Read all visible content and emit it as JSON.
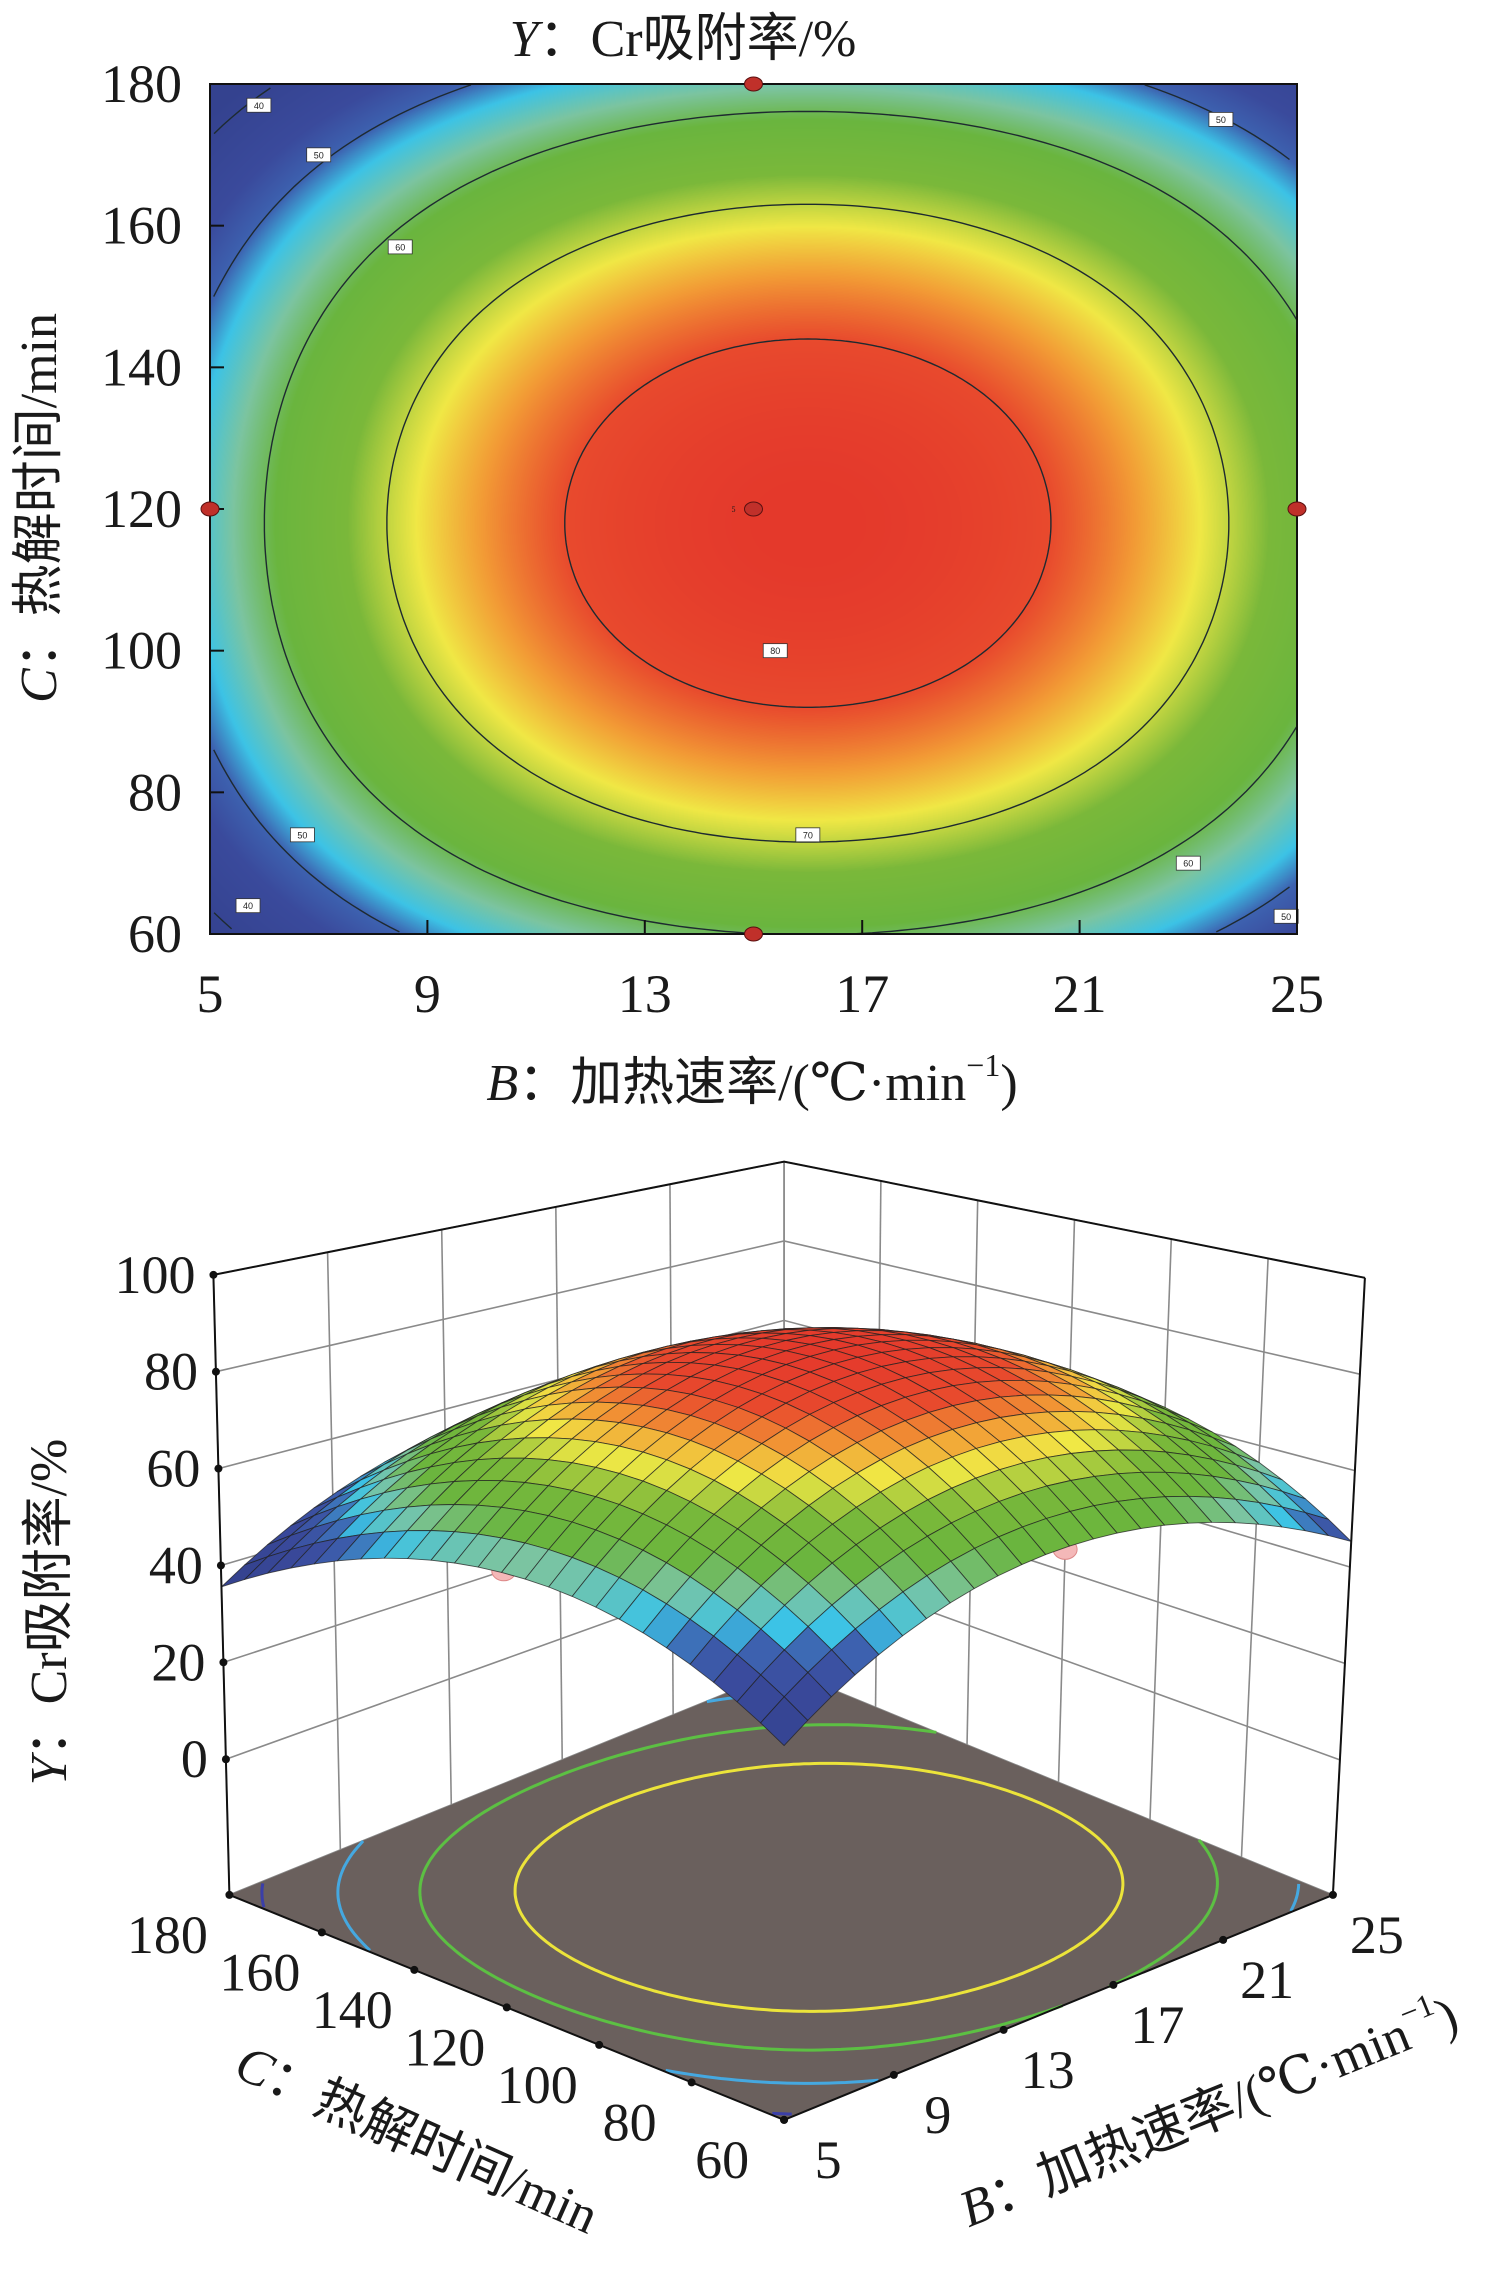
{
  "chart_data": [
    {
      "type": "contour",
      "title": {
        "var": "Y",
        "text": "：Cr吸附率/%"
      },
      "xlabel": {
        "var": "B",
        "text": "：加热速率/(℃·min",
        "sup": "−1",
        "close": ")"
      },
      "ylabel": {
        "var": "C",
        "text": "：热解时间/min"
      },
      "xlim": [
        5,
        25
      ],
      "ylim": [
        60,
        180
      ],
      "xticks": [
        "5",
        "9",
        "13",
        "17",
        "21",
        "25"
      ],
      "yticks": [
        "60",
        "80",
        "100",
        "120",
        "140",
        "160",
        "180"
      ],
      "contour_levels": [
        40,
        50,
        60,
        70,
        80
      ],
      "design_points": [
        {
          "B": 15,
          "C": 180
        },
        {
          "B": 5,
          "C": 120
        },
        {
          "B": 25,
          "C": 120
        },
        {
          "B": 15,
          "C": 120
        },
        {
          "B": 15,
          "C": 60
        }
      ],
      "center_point_label": "5",
      "colormap": [
        "#3a4a9c",
        "#3cc3e6",
        "#6ab53e",
        "#f0e845",
        "#f29a35",
        "#e3352b"
      ],
      "design_point_color": "#c0302a"
    },
    {
      "type": "surface3d",
      "zlabel": {
        "var": "Y",
        "text": "：Cr吸附率/%"
      },
      "xlabel": {
        "var": "B",
        "text": "：加热速率/(℃·min",
        "sup": "−1",
        "close": ")"
      },
      "ylabel": {
        "var": "C",
        "text": "：热解时间/min"
      },
      "xticks": [
        "5",
        "9",
        "13",
        "17",
        "21",
        "25"
      ],
      "yticks": [
        "60",
        "80",
        "100",
        "120",
        "140",
        "160",
        "180"
      ],
      "zticks": [
        "0",
        "20",
        "40",
        "60",
        "80",
        "100"
      ],
      "zlim": [
        0,
        100
      ],
      "floor_contours": [
        {
          "level": 40,
          "color": "#3b3fa8"
        },
        {
          "level": 50,
          "color": "#45a8e0"
        },
        {
          "level": 60,
          "color": "#5cc043"
        },
        {
          "level": 70,
          "color": "#ece43a"
        }
      ],
      "floor_color": "#6a605d",
      "observed_points": [
        {
          "B": 15,
          "C": 180,
          "Y": 20
        },
        {
          "B": 25,
          "C": 120,
          "Y": 25
        }
      ],
      "observed_point_color": "#f4b8b8"
    }
  ]
}
